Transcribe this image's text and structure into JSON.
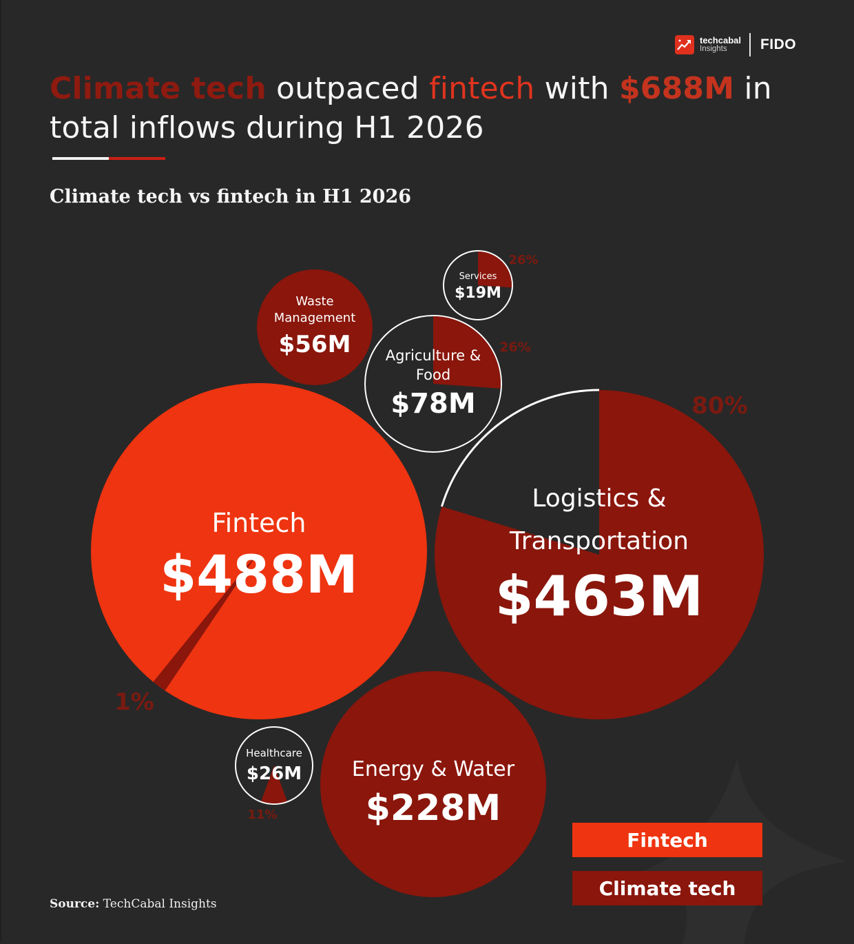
{
  "brand": {
    "name": "techcabal",
    "sub": "Insights",
    "partner": "FIDO"
  },
  "headline": {
    "part1": "Climate tech",
    "part2": " outpaced ",
    "part3": "fintech",
    "part4": " with ",
    "part5": "$688M",
    "part6": " in total inflows during H1 2026"
  },
  "subtitle": "Climate tech vs fintech in H1 2026",
  "colors": {
    "background": "#282828",
    "fintech": "#ee3410",
    "climate": "#8a160c",
    "outline": "#ffffff"
  },
  "chart_data": {
    "type": "bubble",
    "title": "Climate tech vs fintech in H1 2026",
    "series": [
      {
        "name": "Fintech",
        "color": "#ee3410"
      },
      {
        "name": "Climate tech",
        "color": "#8a160c"
      }
    ],
    "bubbles": [
      {
        "id": "fintech",
        "label": "Fintech",
        "value_label": "$488M",
        "value": 488,
        "category": "Fintech",
        "share_label": "1%",
        "share": 1
      },
      {
        "id": "logistics",
        "label": "Logistics & Transportation",
        "label_lines": [
          "Logistics &",
          "Transportation"
        ],
        "value_label": "$463M",
        "value": 463,
        "category": "Climate tech",
        "share_label": "80%",
        "share": 80
      },
      {
        "id": "energy",
        "label": "Energy & Water",
        "value_label": "$228M",
        "value": 228,
        "category": "Climate tech",
        "share": 100
      },
      {
        "id": "agriculture",
        "label": "Agriculture & Food",
        "label_lines": [
          "Agriculture &",
          "Food"
        ],
        "value_label": "$78M",
        "value": 78,
        "category": "Climate tech",
        "share_label": "26%",
        "share": 26
      },
      {
        "id": "waste",
        "label": "Waste Management",
        "label_lines": [
          "Waste",
          "Management"
        ],
        "value_label": "$56M",
        "value": 56,
        "category": "Climate tech",
        "share": 100
      },
      {
        "id": "healthcare",
        "label": "Healthcare",
        "value_label": "$26M",
        "value": 26,
        "category": "Climate tech",
        "share_label": "11%",
        "share": 11
      },
      {
        "id": "services",
        "label": "Services",
        "value_label": "$19M",
        "value": 19,
        "category": "Climate tech",
        "share_label": "26%",
        "share": 26
      }
    ]
  },
  "legend": {
    "fintech": "Fintech",
    "climate": "Climate tech"
  },
  "source": {
    "label": "Source:",
    "text": " TechCabal Insights"
  }
}
